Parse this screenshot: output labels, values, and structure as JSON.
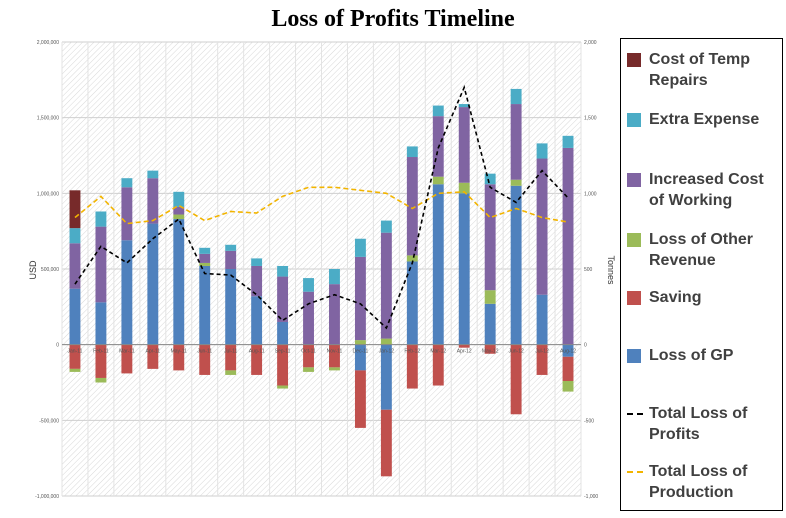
{
  "chart_data": {
    "type": "bar",
    "title": "Loss of Profits Timeline",
    "ylabel": "USD",
    "y2label": "Tonnes",
    "ylim": [
      -1000000,
      2000000
    ],
    "y2lim": [
      -1000,
      2000
    ],
    "yticks": [
      "2,000,000",
      "1,500,000",
      "1,000,000",
      "500,000",
      "0",
      "-500,000",
      "-1,000,000"
    ],
    "y2ticks": [
      "2,000",
      "1,500",
      "1,000",
      "500",
      "0",
      "-500",
      "-1,000"
    ],
    "grid": true,
    "legend_position": "right",
    "categories": [
      "Jan-11",
      "Feb-11",
      "Mar-11",
      "Apr-11",
      "May-11",
      "Jun-11",
      "Jul-11",
      "Aug-11",
      "Sep-11",
      "Oct-11",
      "Nov-11",
      "Dec-11",
      "Jan-12",
      "Feb-12",
      "Mar-12",
      "Apr-12",
      "May-12",
      "Jun-12",
      "Jul-12",
      "Aug-12"
    ],
    "series": [
      {
        "name": "Cost of Temp Repairs",
        "kind": "bar",
        "color": "#772a2a",
        "values": [
          250000,
          0,
          0,
          0,
          0,
          0,
          0,
          0,
          0,
          0,
          0,
          0,
          0,
          0,
          0,
          0,
          0,
          0,
          0,
          0
        ]
      },
      {
        "name": "Extra Expense",
        "kind": "bar",
        "color": "#4bacc6",
        "values": [
          100000,
          100000,
          60000,
          50000,
          100000,
          40000,
          40000,
          50000,
          70000,
          90000,
          100000,
          120000,
          80000,
          70000,
          70000,
          20000,
          70000,
          100000,
          100000,
          80000
        ]
      },
      {
        "name": "Increased Cost of Working",
        "kind": "bar",
        "color": "#8064a2",
        "values": [
          300000,
          500000,
          350000,
          300000,
          50000,
          60000,
          120000,
          200000,
          300000,
          350000,
          400000,
          550000,
          700000,
          650000,
          400000,
          500000,
          700000,
          500000,
          900000,
          1300000
        ]
      },
      {
        "name": "Loss of Other Revenue",
        "kind": "bar",
        "color": "#9bbb59",
        "values": [
          0,
          0,
          0,
          0,
          30000,
          20000,
          0,
          0,
          0,
          0,
          0,
          30000,
          40000,
          40000,
          50000,
          70000,
          90000,
          40000,
          0,
          0
        ]
      },
      {
        "name": "Saving",
        "kind": "bar",
        "color": "#c0504d",
        "values": [
          -160000,
          -220000,
          -190000,
          -160000,
          -170000,
          -200000,
          -170000,
          -200000,
          -270000,
          -150000,
          -150000,
          -380000,
          -440000,
          -290000,
          -270000,
          -20000,
          -60000,
          -460000,
          -200000,
          -160000
        ]
      },
      {
        "name": "Loss of GP",
        "kind": "bar",
        "color": "#4f81bd",
        "values": [
          370000,
          280000,
          690000,
          800000,
          830000,
          520000,
          500000,
          320000,
          150000,
          0,
          0,
          -170000,
          -430000,
          550000,
          1060000,
          1000000,
          270000,
          1050000,
          330000,
          -80000
        ]
      },
      {
        "name": "Loss of Other Revenue (negative)",
        "kind": "bar-negative",
        "color": "#9bbb59",
        "values": [
          -20000,
          -30000,
          0,
          0,
          0,
          0,
          -30000,
          0,
          -20000,
          -30000,
          -20000,
          0,
          0,
          0,
          0,
          0,
          0,
          0,
          0,
          -70000
        ]
      },
      {
        "name": "Total Loss of Profits",
        "kind": "line",
        "color": "#000000",
        "values": [
          400000,
          650000,
          540000,
          700000,
          830000,
          470000,
          460000,
          330000,
          160000,
          270000,
          330000,
          270000,
          110000,
          540000,
          1300000,
          1700000,
          1040000,
          940000,
          1150000,
          970000
        ]
      },
      {
        "name": "Total Loss of Production",
        "kind": "line",
        "color": "#f2b400",
        "values": [
          840,
          980,
          800,
          820,
          920,
          820,
          880,
          870,
          980,
          1040,
          1040,
          1020,
          1000,
          900,
          1000,
          1010,
          840,
          900,
          840,
          810
        ]
      }
    ]
  },
  "legend": [
    {
      "label": "Cost of Temp Repairs",
      "color": "#772a2a",
      "kind": "swatch"
    },
    {
      "label": "Extra Expense",
      "color": "#4bacc6",
      "kind": "swatch"
    },
    {
      "label": "Increased Cost of Working",
      "color": "#8064a2",
      "kind": "swatch"
    },
    {
      "label": "Loss of Other Revenue",
      "color": "#9bbb59",
      "kind": "swatch"
    },
    {
      "label": "Saving",
      "color": "#c0504d",
      "kind": "swatch"
    },
    {
      "label": "Loss of GP",
      "color": "#4f81bd",
      "kind": "swatch"
    },
    {
      "label": "Total Loss of Profits",
      "color": "#000000",
      "kind": "line"
    },
    {
      "label": "Total Loss of Production",
      "color": "#f2b400",
      "kind": "line"
    }
  ]
}
